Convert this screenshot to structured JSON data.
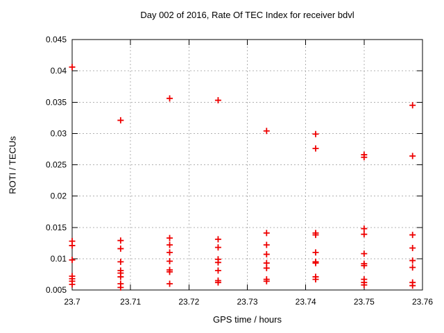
{
  "chart_data": {
    "type": "scatter",
    "title": "Day 002 of 2016, Rate Of TEC Index for receiver bdvl",
    "xlabel": "GPS time / hours",
    "ylabel": "ROTI / TECUs",
    "xlim": [
      23.7,
      23.76
    ],
    "ylim": [
      0.005,
      0.045
    ],
    "xticks": [
      23.7,
      23.71,
      23.72,
      23.73,
      23.74,
      23.75,
      23.76
    ],
    "xtick_labels": [
      "23.7",
      "23.71",
      "23.72",
      "23.73",
      "23.74",
      "23.75",
      "23.76"
    ],
    "yticks": [
      0.005,
      0.01,
      0.015,
      0.02,
      0.025,
      0.03,
      0.035,
      0.04,
      0.045
    ],
    "ytick_labels": [
      "0.005",
      "0.01",
      "0.015",
      "0.02",
      "0.025",
      "0.03",
      "0.035",
      "0.04",
      "0.045"
    ],
    "grid": true,
    "legend": "none",
    "marker": "plus",
    "marker_color": "#ee0000",
    "grid_color": "#b0b0b0",
    "border_color": "#000000",
    "series": [
      {
        "name": "ROTI",
        "points": [
          [
            23.7,
            0.0406
          ],
          [
            23.7,
            0.0128
          ],
          [
            23.7,
            0.0121
          ],
          [
            23.7,
            0.0098
          ],
          [
            23.7,
            0.0072
          ],
          [
            23.7,
            0.0068
          ],
          [
            23.7,
            0.0064
          ],
          [
            23.7,
            0.0059
          ],
          [
            23.7083,
            0.0321
          ],
          [
            23.7083,
            0.0129
          ],
          [
            23.7083,
            0.0116
          ],
          [
            23.7083,
            0.0095
          ],
          [
            23.7083,
            0.0081
          ],
          [
            23.7083,
            0.0077
          ],
          [
            23.7083,
            0.0071
          ],
          [
            23.7083,
            0.006
          ],
          [
            23.7083,
            0.0054
          ],
          [
            23.7167,
            0.0356
          ],
          [
            23.7167,
            0.0133
          ],
          [
            23.7167,
            0.0122
          ],
          [
            23.7167,
            0.011
          ],
          [
            23.7167,
            0.0096
          ],
          [
            23.7167,
            0.0082
          ],
          [
            23.7167,
            0.0079
          ],
          [
            23.7167,
            0.006
          ],
          [
            23.725,
            0.0353
          ],
          [
            23.725,
            0.0131
          ],
          [
            23.725,
            0.0118
          ],
          [
            23.725,
            0.0099
          ],
          [
            23.725,
            0.0094
          ],
          [
            23.725,
            0.0081
          ],
          [
            23.725,
            0.0065
          ],
          [
            23.725,
            0.0062
          ],
          [
            23.7333,
            0.0304
          ],
          [
            23.7333,
            0.0141
          ],
          [
            23.7333,
            0.0122
          ],
          [
            23.7333,
            0.0107
          ],
          [
            23.7333,
            0.0093
          ],
          [
            23.7333,
            0.0085
          ],
          [
            23.7333,
            0.0067
          ],
          [
            23.7333,
            0.0064
          ],
          [
            23.7417,
            0.0299
          ],
          [
            23.7417,
            0.0276
          ],
          [
            23.7417,
            0.0141
          ],
          [
            23.7417,
            0.0138
          ],
          [
            23.7417,
            0.011
          ],
          [
            23.7417,
            0.0095
          ],
          [
            23.7417,
            0.0093
          ],
          [
            23.7417,
            0.0071
          ],
          [
            23.7417,
            0.0067
          ],
          [
            23.75,
            0.0266
          ],
          [
            23.75,
            0.0262
          ],
          [
            23.75,
            0.0148
          ],
          [
            23.75,
            0.0139
          ],
          [
            23.75,
            0.0108
          ],
          [
            23.75,
            0.0092
          ],
          [
            23.75,
            0.0089
          ],
          [
            23.75,
            0.0067
          ],
          [
            23.75,
            0.0062
          ],
          [
            23.75,
            0.0058
          ],
          [
            23.7583,
            0.0345
          ],
          [
            23.7583,
            0.0264
          ],
          [
            23.7583,
            0.0138
          ],
          [
            23.7583,
            0.0117
          ],
          [
            23.7583,
            0.0097
          ],
          [
            23.7583,
            0.0086
          ],
          [
            23.7583,
            0.0062
          ],
          [
            23.7583,
            0.0057
          ]
        ]
      }
    ]
  }
}
